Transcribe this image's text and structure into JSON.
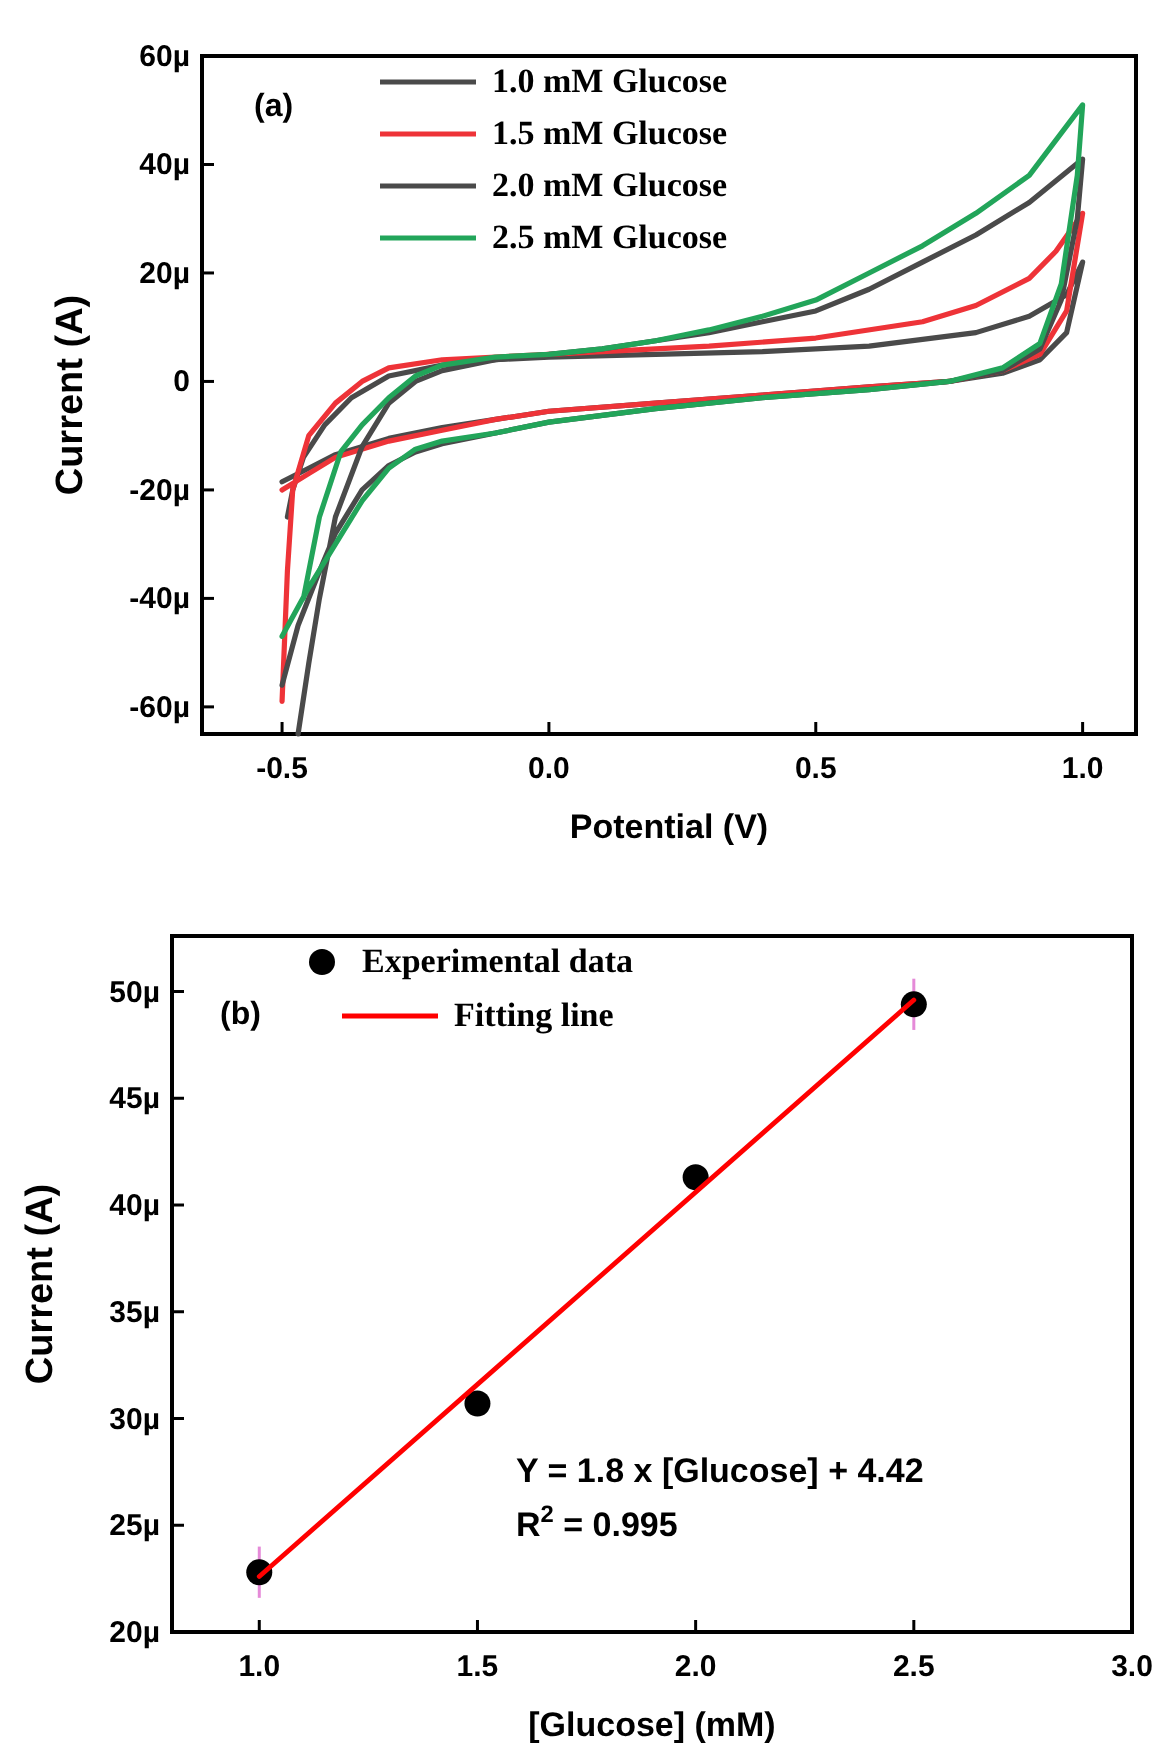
{
  "chart_data": [
    {
      "type": "line",
      "xlabel": "Potential (V)",
      "ylabel": "Current (A)",
      "annotations": [
        "(a)"
      ],
      "legend": "top",
      "xlim": [
        -0.65,
        1.1
      ],
      "ylim": [
        -65,
        60
      ],
      "xticks": [
        {
          "value": -0.5,
          "label": "-0.5"
        },
        {
          "value": 0,
          "label": "0.0"
        },
        {
          "value": 0.5,
          "label": "0.5"
        },
        {
          "value": 1,
          "label": "1.0"
        }
      ],
      "yticks": [
        {
          "value": -60,
          "label": "-60µ"
        },
        {
          "value": -40,
          "label": "-40µ"
        },
        {
          "value": -20,
          "label": "-20µ"
        },
        {
          "value": 0,
          "label": "0"
        },
        {
          "value": 20,
          "label": "20µ"
        },
        {
          "value": 40,
          "label": "40µ"
        },
        {
          "value": 60,
          "label": "60µ"
        }
      ],
      "series": [
        {
          "name": "1.0 mM Glucose",
          "color": "#4a4a4a",
          "x": [
            -0.5,
            -0.45,
            -0.4,
            -0.3,
            -0.2,
            -0.1,
            0,
            0.2,
            0.4,
            0.6,
            0.75,
            0.85,
            0.92,
            0.97,
            1.0,
            0.97,
            0.9,
            0.8,
            0.6,
            0.4,
            0.2,
            0,
            -0.1,
            -0.2,
            -0.3,
            -0.37,
            -0.42,
            -0.46,
            -0.48,
            -0.49
          ],
          "values": [
            -18.5,
            -16,
            -13.5,
            -10.5,
            -8.5,
            -7,
            -5.5,
            -4,
            -2.5,
            -1,
            0,
            1.5,
            4,
            9,
            22,
            16,
            12,
            9,
            6.5,
            5.5,
            5,
            4.5,
            4,
            3,
            1,
            -3,
            -8,
            -14,
            -20,
            -25
          ]
        },
        {
          "name": "1.5 mM Glucose",
          "color": "#ee3338",
          "x": [
            -0.5,
            -0.45,
            -0.4,
            -0.3,
            -0.2,
            -0.1,
            0,
            0.2,
            0.4,
            0.6,
            0.75,
            0.85,
            0.92,
            0.97,
            1.0,
            0.95,
            0.9,
            0.8,
            0.7,
            0.5,
            0.3,
            0.1,
            0,
            -0.1,
            -0.2,
            -0.3,
            -0.35,
            -0.4,
            -0.45,
            -0.48,
            -0.49,
            -0.5
          ],
          "values": [
            -20,
            -17,
            -14,
            -11,
            -9,
            -7,
            -5.5,
            -4,
            -2.5,
            -1,
            0,
            2,
            5,
            13,
            31,
            24,
            19,
            14,
            11,
            8,
            6.5,
            5.5,
            5,
            4.5,
            4,
            2.5,
            0,
            -4,
            -10,
            -20,
            -35,
            -59
          ]
        },
        {
          "name": "2.0 mM Glucose",
          "color": "#4a4a4a",
          "x": [
            -0.5,
            -0.47,
            -0.43,
            -0.4,
            -0.35,
            -0.3,
            -0.25,
            -0.2,
            -0.1,
            0,
            0.2,
            0.4,
            0.6,
            0.75,
            0.85,
            0.92,
            0.96,
            0.99,
            1.0,
            0.9,
            0.8,
            0.7,
            0.6,
            0.5,
            0.4,
            0.3,
            0.2,
            0.1,
            0,
            -0.1,
            -0.15,
            -0.2,
            -0.25,
            -0.3,
            -0.35,
            -0.4,
            -0.43,
            -0.45,
            -0.47
          ],
          "values": [
            -56,
            -45,
            -35,
            -28,
            -20,
            -15.5,
            -13,
            -11.5,
            -9.5,
            -7.5,
            -5,
            -3,
            -1.5,
            0,
            2,
            6,
            15,
            30,
            41,
            33,
            27,
            22,
            17,
            13,
            11,
            9,
            7.5,
            6,
            5,
            4,
            3,
            2,
            0,
            -4,
            -12,
            -25,
            -40,
            -52,
            -65
          ]
        },
        {
          "name": "2.5 mM Glucose",
          "color": "#22a55a",
          "x": [
            -0.5,
            -0.45,
            -0.4,
            -0.35,
            -0.3,
            -0.25,
            -0.2,
            -0.1,
            0,
            0.2,
            0.4,
            0.6,
            0.75,
            0.85,
            0.92,
            0.96,
            0.99,
            1.0,
            0.9,
            0.8,
            0.7,
            0.6,
            0.5,
            0.4,
            0.3,
            0.2,
            0.1,
            0,
            -0.1,
            -0.2,
            -0.25,
            -0.3,
            -0.35,
            -0.39,
            -0.43,
            -0.46
          ],
          "values": [
            -47,
            -38,
            -30,
            -22,
            -16,
            -12.5,
            -11,
            -9.5,
            -7.5,
            -5,
            -3,
            -1.5,
            0,
            2.5,
            7,
            18,
            38,
            51,
            38,
            31,
            25,
            20,
            15,
            12,
            9.5,
            7.5,
            6,
            5,
            4.5,
            3,
            1,
            -3,
            -8,
            -13,
            -25,
            -40
          ]
        }
      ]
    },
    {
      "type": "scatter",
      "xlabel": "[Glucose] (mM)",
      "ylabel": "Current (A)",
      "annotations": [
        "(b)",
        "Y = 1.8 x [Glucose] + 4.42",
        "R$^{2}$ = 0.995"
      ],
      "legend": "top left",
      "xlim": [
        0.8,
        3.0
      ],
      "ylim": [
        20,
        52.6
      ],
      "xticks": [
        {
          "value": 1,
          "label": "1.0"
        },
        {
          "value": 1.5,
          "label": "1.5"
        },
        {
          "value": 2,
          "label": "2.0"
        },
        {
          "value": 2.5,
          "label": "2.5"
        },
        {
          "value": 3,
          "label": "3.0"
        }
      ],
      "yticks": [
        {
          "value": 20,
          "label": "20µ"
        },
        {
          "value": 25,
          "label": "25µ"
        },
        {
          "value": 30,
          "label": "30µ"
        },
        {
          "value": 35,
          "label": "35µ"
        },
        {
          "value": 40,
          "label": "40µ"
        },
        {
          "value": 45,
          "label": "45µ"
        },
        {
          "value": 50,
          "label": "50µ"
        }
      ],
      "series": [
        {
          "name": "Experimental data",
          "marker": "circle",
          "color": "#000000",
          "x": [
            1.0,
            1.5,
            2.0,
            2.5
          ],
          "values": [
            22.8,
            30.7,
            41.3,
            49.4
          ],
          "errors": [
            1.2,
            null,
            null,
            1.2
          ]
        },
        {
          "name": "Fitting line",
          "type": "line",
          "color": "#ff0000",
          "x": [
            1.0,
            2.5
          ],
          "values": [
            22.6,
            49.6
          ]
        }
      ]
    }
  ]
}
